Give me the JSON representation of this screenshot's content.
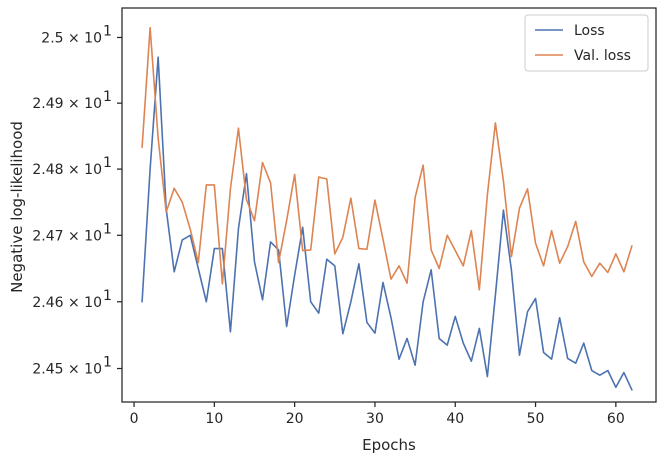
{
  "chart_data": {
    "type": "line",
    "xlabel": "Epochs",
    "ylabel": "Negative log-likelihood",
    "xlim": [
      -1.5,
      65
    ],
    "ylim": [
      24.45,
      25.045
    ],
    "y_scale": "log",
    "grid": false,
    "legend_position": "top-right",
    "x_ticks": [
      0,
      10,
      20,
      30,
      40,
      50,
      60
    ],
    "y_ticks": [
      {
        "value": 24.5,
        "base": "2.45 × 10",
        "exp": "1"
      },
      {
        "value": 24.6,
        "base": "2.46 × 10",
        "exp": "1"
      },
      {
        "value": 24.7,
        "base": "2.47 × 10",
        "exp": "1"
      },
      {
        "value": 24.8,
        "base": "2.48 × 10",
        "exp": "1"
      },
      {
        "value": 24.9,
        "base": "2.49 × 10",
        "exp": "1"
      },
      {
        "value": 25.0,
        "base": "2.5 × 10",
        "exp": "1"
      }
    ],
    "x": [
      1,
      2,
      3,
      4,
      5,
      6,
      7,
      8,
      9,
      10,
      11,
      12,
      13,
      14,
      15,
      16,
      17,
      18,
      19,
      20,
      21,
      22,
      23,
      24,
      25,
      26,
      27,
      28,
      29,
      30,
      31,
      32,
      33,
      34,
      35,
      36,
      37,
      38,
      39,
      40,
      41,
      42,
      43,
      44,
      45,
      46,
      47,
      48,
      49,
      50,
      51,
      52,
      53,
      54,
      55,
      56,
      57,
      58,
      59,
      60,
      61,
      62
    ],
    "series": [
      {
        "name": "Loss",
        "color": "#4c72b0",
        "values": [
          24.6,
          24.8,
          24.97,
          24.74,
          24.645,
          24.693,
          24.7,
          24.65,
          24.6,
          24.68,
          24.68,
          24.555,
          24.71,
          24.793,
          24.66,
          24.603,
          24.69,
          24.678,
          24.563,
          24.64,
          24.712,
          24.6,
          24.583,
          24.664,
          24.654,
          24.552,
          24.6,
          24.657,
          24.569,
          24.553,
          24.629,
          24.576,
          24.514,
          24.545,
          24.505,
          24.6,
          24.648,
          24.545,
          24.535,
          24.578,
          24.538,
          24.511,
          24.56,
          24.488,
          24.61,
          24.738,
          24.647,
          24.52,
          24.585,
          24.605,
          24.524,
          24.514,
          24.576,
          24.515,
          24.508,
          24.538,
          24.497,
          24.49,
          24.497,
          24.472,
          24.494,
          24.468
        ]
      },
      {
        "name": "Val. loss",
        "color": "#dd8452",
        "values": [
          24.833,
          25.015,
          24.847,
          24.735,
          24.771,
          24.75,
          24.709,
          24.659,
          24.776,
          24.776,
          24.627,
          24.77,
          24.862,
          24.754,
          24.722,
          24.81,
          24.779,
          24.659,
          24.722,
          24.792,
          24.677,
          24.678,
          24.788,
          24.785,
          24.672,
          24.697,
          24.756,
          24.68,
          24.679,
          24.753,
          24.694,
          24.634,
          24.654,
          24.628,
          24.757,
          24.806,
          24.678,
          24.65,
          24.7,
          24.677,
          24.654,
          24.707,
          24.618,
          24.761,
          24.87,
          24.782,
          24.668,
          24.741,
          24.77,
          24.688,
          24.654,
          24.707,
          24.658,
          24.683,
          24.721,
          24.66,
          24.638,
          24.658,
          24.644,
          24.672,
          24.645,
          24.684
        ]
      }
    ]
  }
}
